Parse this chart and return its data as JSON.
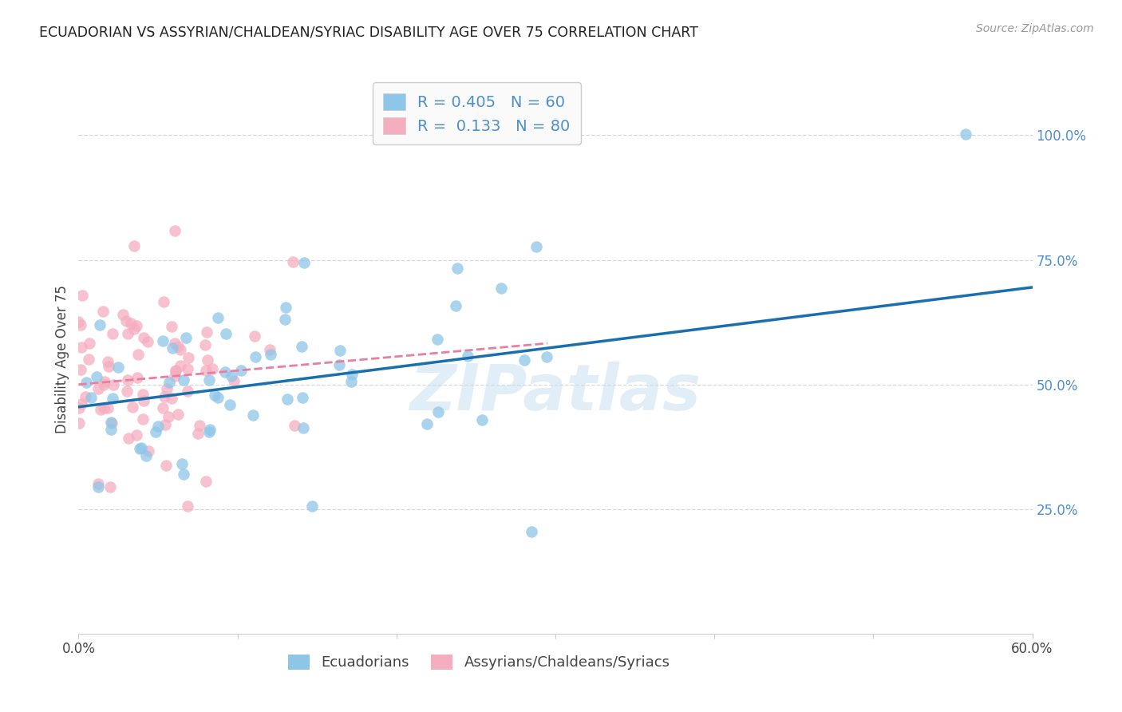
{
  "title": "ECUADORIAN VS ASSYRIAN/CHALDEAN/SYRIAC DISABILITY AGE OVER 75 CORRELATION CHART",
  "source_text": "Source: ZipAtlas.com",
  "ylabel": "Disability Age Over 75",
  "xlim": [
    0.0,
    0.6
  ],
  "ylim": [
    0.0,
    1.1
  ],
  "blue_color": "#8ec6e8",
  "pink_color": "#f5adc0",
  "blue_line_color": "#1a6fad",
  "pink_line_color": "#e87fa0",
  "legend_R_blue": "0.405",
  "legend_N_blue": "60",
  "legend_R_pink": "0.133",
  "legend_N_pink": "80",
  "legend_label_blue": "Ecuadorians",
  "legend_label_pink": "Assyrians/Chaldeans/Syriacs",
  "watermark": "ZIPatlas",
  "background_color": "#ffffff",
  "grid_color": "#d8d8d8",
  "title_color": "#222222",
  "right_axis_color": "#4e8fcc"
}
